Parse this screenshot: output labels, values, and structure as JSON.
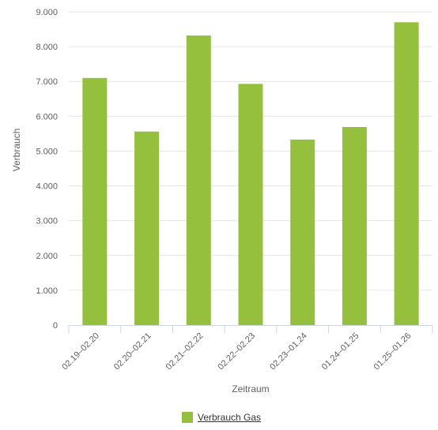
{
  "chart_data": {
    "type": "bar",
    "categories": [
      "02.19–02.20",
      "02.20–02.21",
      "02.21–02.22",
      "02.22–02.23",
      "02.23–01.24",
      "01.24–01.25",
      "01.25–01.26"
    ],
    "series": [
      {
        "name": "Verbrauch Gas",
        "values": [
          7100,
          5560,
          8320,
          6930,
          5330,
          5690,
          8700
        ]
      }
    ],
    "ylim": [
      0,
      9000
    ],
    "yticks": [
      0,
      1000,
      2000,
      3000,
      4000,
      5000,
      6000,
      7000,
      8000,
      9000
    ],
    "ytick_labels": [
      "0",
      "1.000",
      "2.000",
      "3.000",
      "4.000",
      "5.000",
      "6.000",
      "7.000",
      "8.000",
      "9.000"
    ],
    "xlabel": "Zeitraum",
    "ylabel": "Verbrauch",
    "grid": true,
    "legend_position": "bottom-center",
    "colors": {
      "bar": "#95c03d",
      "grid": "#e6e6e6",
      "axis": "#ccd6eb"
    }
  }
}
